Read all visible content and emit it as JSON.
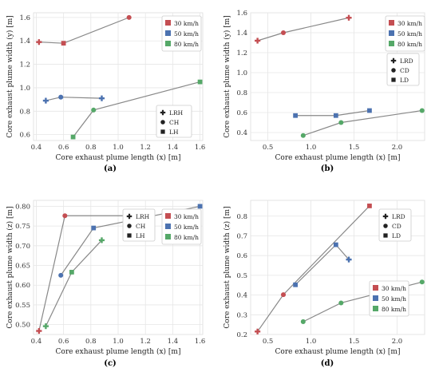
{
  "figure_captions": [
    "(a)",
    "(b)",
    "(c)",
    "(d)"
  ],
  "colors": {
    "panel_bg": "#ffffff",
    "grid": "#e6e6e6",
    "connector": "#888888",
    "series_30": "#c44e52",
    "series_50": "#4c72b0",
    "series_80": "#55a868",
    "glyph": "#222222"
  },
  "chart_data": [
    {
      "type": "scatter",
      "caption": "(a)",
      "xlabel": "Core exhaust plume length (x) [m]",
      "ylabel": "Core exhaust plume width (y) [m]",
      "xlim": [
        0.38,
        1.62
      ],
      "ylim": [
        0.55,
        1.64
      ],
      "xticks": [
        0.4,
        0.6,
        0.8,
        1.0,
        1.2,
        1.4,
        1.6
      ],
      "yticks": [
        0.6,
        0.8,
        1.0,
        1.2,
        1.4,
        1.6
      ],
      "xtick_labels": [
        "0.4",
        "0.6",
        "0.8",
        "1.0",
        "1.2",
        "1.4",
        "1.6"
      ],
      "ytick_labels": [
        "0.6",
        "0.8",
        "1.0",
        "1.2",
        "1.4",
        "1.6"
      ],
      "grid": true,
      "legend_speed": {
        "position": "top-right",
        "entries": [
          "30 km/h",
          "50 km/h",
          "80 km/h"
        ]
      },
      "legend_type": {
        "position": "right",
        "entries": [
          {
            "label": "LRH",
            "marker": "plus"
          },
          {
            "label": "CH",
            "marker": "circle"
          },
          {
            "label": "LH",
            "marker": "square"
          }
        ]
      },
      "series": [
        {
          "name": "30 km/h",
          "color_key": "series_30",
          "points": [
            {
              "x": 1.08,
              "y": 1.6,
              "m": "circle"
            },
            {
              "x": 0.6,
              "y": 1.38,
              "m": "square"
            },
            {
              "x": 0.42,
              "y": 1.39,
              "m": "plus"
            }
          ]
        },
        {
          "name": "50 km/h",
          "color_key": "series_50",
          "points": [
            {
              "x": 0.47,
              "y": 0.89,
              "m": "plus"
            },
            {
              "x": 0.58,
              "y": 0.92,
              "m": "circle"
            },
            {
              "x": 0.88,
              "y": 0.91,
              "m": "plus"
            }
          ]
        },
        {
          "name": "80 km/h",
          "color_key": "series_80",
          "points": [
            {
              "x": 0.67,
              "y": 0.58,
              "m": "square"
            },
            {
              "x": 0.82,
              "y": 0.81,
              "m": "circle"
            },
            {
              "x": 1.6,
              "y": 1.05,
              "m": "square"
            }
          ]
        }
      ]
    },
    {
      "type": "scatter",
      "caption": "(b)",
      "xlabel": "Core exhaust plume length (x) [m]",
      "ylabel": "Core exhaust plume width (y) [m]",
      "xlim": [
        0.3,
        2.32
      ],
      "ylim": [
        0.32,
        1.6
      ],
      "xticks": [
        0.5,
        1.0,
        1.5,
        2.0
      ],
      "yticks": [
        0.4,
        0.6,
        0.8,
        1.0,
        1.2,
        1.4,
        1.6
      ],
      "xtick_labels": [
        "0.5",
        "1.0",
        "1.5",
        "2.0"
      ],
      "ytick_labels": [
        "0.4",
        "0.6",
        "0.8",
        "1.0",
        "1.2",
        "1.4",
        "1.6"
      ],
      "grid": true,
      "legend_speed": {
        "position": "top-right",
        "entries": [
          "30 km/h",
          "50 km/h",
          "80 km/h"
        ]
      },
      "legend_type": {
        "position": "right",
        "entries": [
          {
            "label": "LRD",
            "marker": "plus"
          },
          {
            "label": "CD",
            "marker": "circle"
          },
          {
            "label": "LD",
            "marker": "square"
          }
        ]
      },
      "series": [
        {
          "name": "30 km/h",
          "color_key": "series_30",
          "points": [
            {
              "x": 0.38,
              "y": 1.32,
              "m": "plus"
            },
            {
              "x": 0.68,
              "y": 1.4,
              "m": "circle"
            },
            {
              "x": 1.44,
              "y": 1.55,
              "m": "plus"
            }
          ]
        },
        {
          "name": "50 km/h",
          "color_key": "series_50",
          "points": [
            {
              "x": 0.82,
              "y": 0.57,
              "m": "square"
            },
            {
              "x": 1.29,
              "y": 0.57,
              "m": "square"
            },
            {
              "x": 1.68,
              "y": 0.62,
              "m": "square"
            }
          ]
        },
        {
          "name": "80 km/h",
          "color_key": "series_80",
          "points": [
            {
              "x": 0.91,
              "y": 0.37,
              "m": "circle"
            },
            {
              "x": 1.35,
              "y": 0.5,
              "m": "circle"
            },
            {
              "x": 2.29,
              "y": 0.62,
              "m": "circle"
            }
          ]
        }
      ]
    },
    {
      "type": "scatter",
      "caption": "(c)",
      "xlabel": "Core exhaust plume length (x) [m]",
      "ylabel": "Core exhaust plume width (z) [m]",
      "xlim": [
        0.38,
        1.62
      ],
      "ylim": [
        0.475,
        0.815
      ],
      "xticks": [
        0.4,
        0.6,
        0.8,
        1.0,
        1.2,
        1.4,
        1.6
      ],
      "yticks": [
        0.5,
        0.55,
        0.6,
        0.65,
        0.7,
        0.75,
        0.8
      ],
      "xtick_labels": [
        "0.4",
        "0.6",
        "0.8",
        "1.0",
        "1.2",
        "1.4",
        "1.6"
      ],
      "ytick_labels": [
        "0.50",
        "0.55",
        "0.60",
        "0.65",
        "0.70",
        "0.75",
        "0.80"
      ],
      "grid": true,
      "legend_speed": {
        "position": "right",
        "entries": [
          "30 km/h",
          "50 km/h",
          "80 km/h"
        ]
      },
      "legend_type": {
        "position": "right",
        "entries": [
          {
            "label": "LRH",
            "marker": "plus"
          },
          {
            "label": "CH",
            "marker": "circle"
          },
          {
            "label": "LH",
            "marker": "square"
          }
        ]
      },
      "series": [
        {
          "name": "30 km/h",
          "color_key": "series_30",
          "points": [
            {
              "x": 0.42,
              "y": 0.484,
              "m": "plus"
            },
            {
              "x": 0.61,
              "y": 0.776,
              "m": "circle"
            },
            {
              "x": 1.08,
              "y": 0.776,
              "m": "circle"
            }
          ]
        },
        {
          "name": "50 km/h",
          "color_key": "series_50",
          "points": [
            {
              "x": 0.58,
              "y": 0.625,
              "m": "circle"
            },
            {
              "x": 0.82,
              "y": 0.745,
              "m": "square"
            },
            {
              "x": 1.6,
              "y": 0.8,
              "m": "square"
            }
          ]
        },
        {
          "name": "80 km/h",
          "color_key": "series_80",
          "points": [
            {
              "x": 0.47,
              "y": 0.496,
              "m": "plus"
            },
            {
              "x": 0.66,
              "y": 0.633,
              "m": "square"
            },
            {
              "x": 0.88,
              "y": 0.714,
              "m": "plus"
            }
          ]
        }
      ]
    },
    {
      "type": "scatter",
      "caption": "(d)",
      "xlabel": "Core exhaust plume length (x) [m]",
      "ylabel": "Core exhaust plume width (z) [m]",
      "xlim": [
        0.3,
        2.32
      ],
      "ylim": [
        0.2,
        0.88
      ],
      "xticks": [
        0.5,
        1.0,
        1.5,
        2.0
      ],
      "yticks": [
        0.2,
        0.3,
        0.4,
        0.5,
        0.6,
        0.7,
        0.8
      ],
      "xtick_labels": [
        "0.5",
        "1.0",
        "1.5",
        "2.0"
      ],
      "ytick_labels": [
        "0.2",
        "0.3",
        "0.4",
        "0.5",
        "0.6",
        "0.7",
        "0.8"
      ],
      "grid": true,
      "legend_speed": {
        "position": "right",
        "entries": [
          "30 km/h",
          "50 km/h",
          "80 km/h"
        ]
      },
      "legend_type": {
        "position": "top-left",
        "entries": [
          {
            "label": "LRD",
            "marker": "plus"
          },
          {
            "label": "CD",
            "marker": "circle"
          },
          {
            "label": "LD",
            "marker": "square"
          }
        ]
      },
      "series": [
        {
          "name": "30 km/h",
          "color_key": "series_30",
          "points": [
            {
              "x": 0.38,
              "y": 0.215,
              "m": "plus"
            },
            {
              "x": 0.68,
              "y": 0.402,
              "m": "circle"
            },
            {
              "x": 1.68,
              "y": 0.852,
              "m": "square"
            }
          ]
        },
        {
          "name": "50 km/h",
          "color_key": "series_50",
          "points": [
            {
              "x": 0.82,
              "y": 0.452,
              "m": "square"
            },
            {
              "x": 1.29,
              "y": 0.655,
              "m": "square"
            },
            {
              "x": 1.44,
              "y": 0.58,
              "m": "plus"
            }
          ]
        },
        {
          "name": "80 km/h",
          "color_key": "series_80",
          "points": [
            {
              "x": 0.91,
              "y": 0.265,
              "m": "circle"
            },
            {
              "x": 1.35,
              "y": 0.36,
              "m": "circle"
            },
            {
              "x": 2.29,
              "y": 0.466,
              "m": "circle"
            }
          ]
        }
      ]
    }
  ]
}
